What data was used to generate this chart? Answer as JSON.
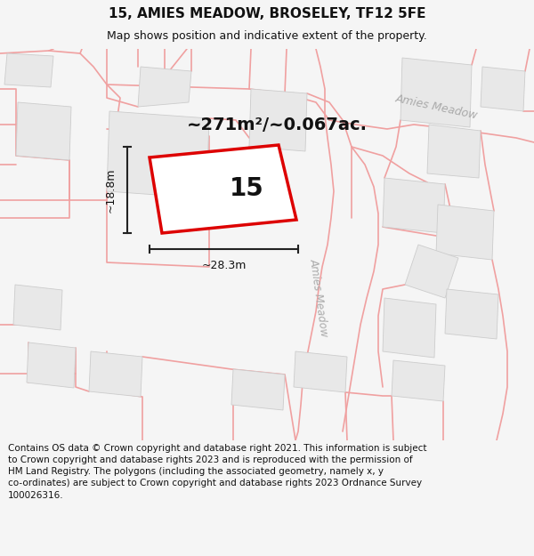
{
  "title": "15, AMIES MEADOW, BROSELEY, TF12 5FE",
  "subtitle": "Map shows position and indicative extent of the property.",
  "area_text": "~271m²/~0.067ac.",
  "dim_width": "~28.3m",
  "dim_height": "~18.8m",
  "plot_number": "15",
  "footer": "Contains OS data © Crown copyright and database right 2021. This information is subject to Crown copyright and database rights 2023 and is reproduced with the permission of HM Land Registry. The polygons (including the associated geometry, namely x, y co-ordinates) are subject to Crown copyright and database rights 2023 Ordnance Survey 100026316.",
  "bg_color": "#f5f5f5",
  "map_bg": "#ffffff",
  "road_color": "#f0a0a0",
  "building_fill": "#e8e8e8",
  "building_edge": "#cccccc",
  "plot_fill": "#ffffff",
  "plot_edge": "#dd0000",
  "dim_color": "#222222",
  "road_label_color": "#aaaaaa",
  "title_fontsize": 11,
  "subtitle_fontsize": 9,
  "area_fontsize": 14,
  "plot_num_fontsize": 20,
  "dim_fontsize": 9,
  "footer_fontsize": 7.5
}
